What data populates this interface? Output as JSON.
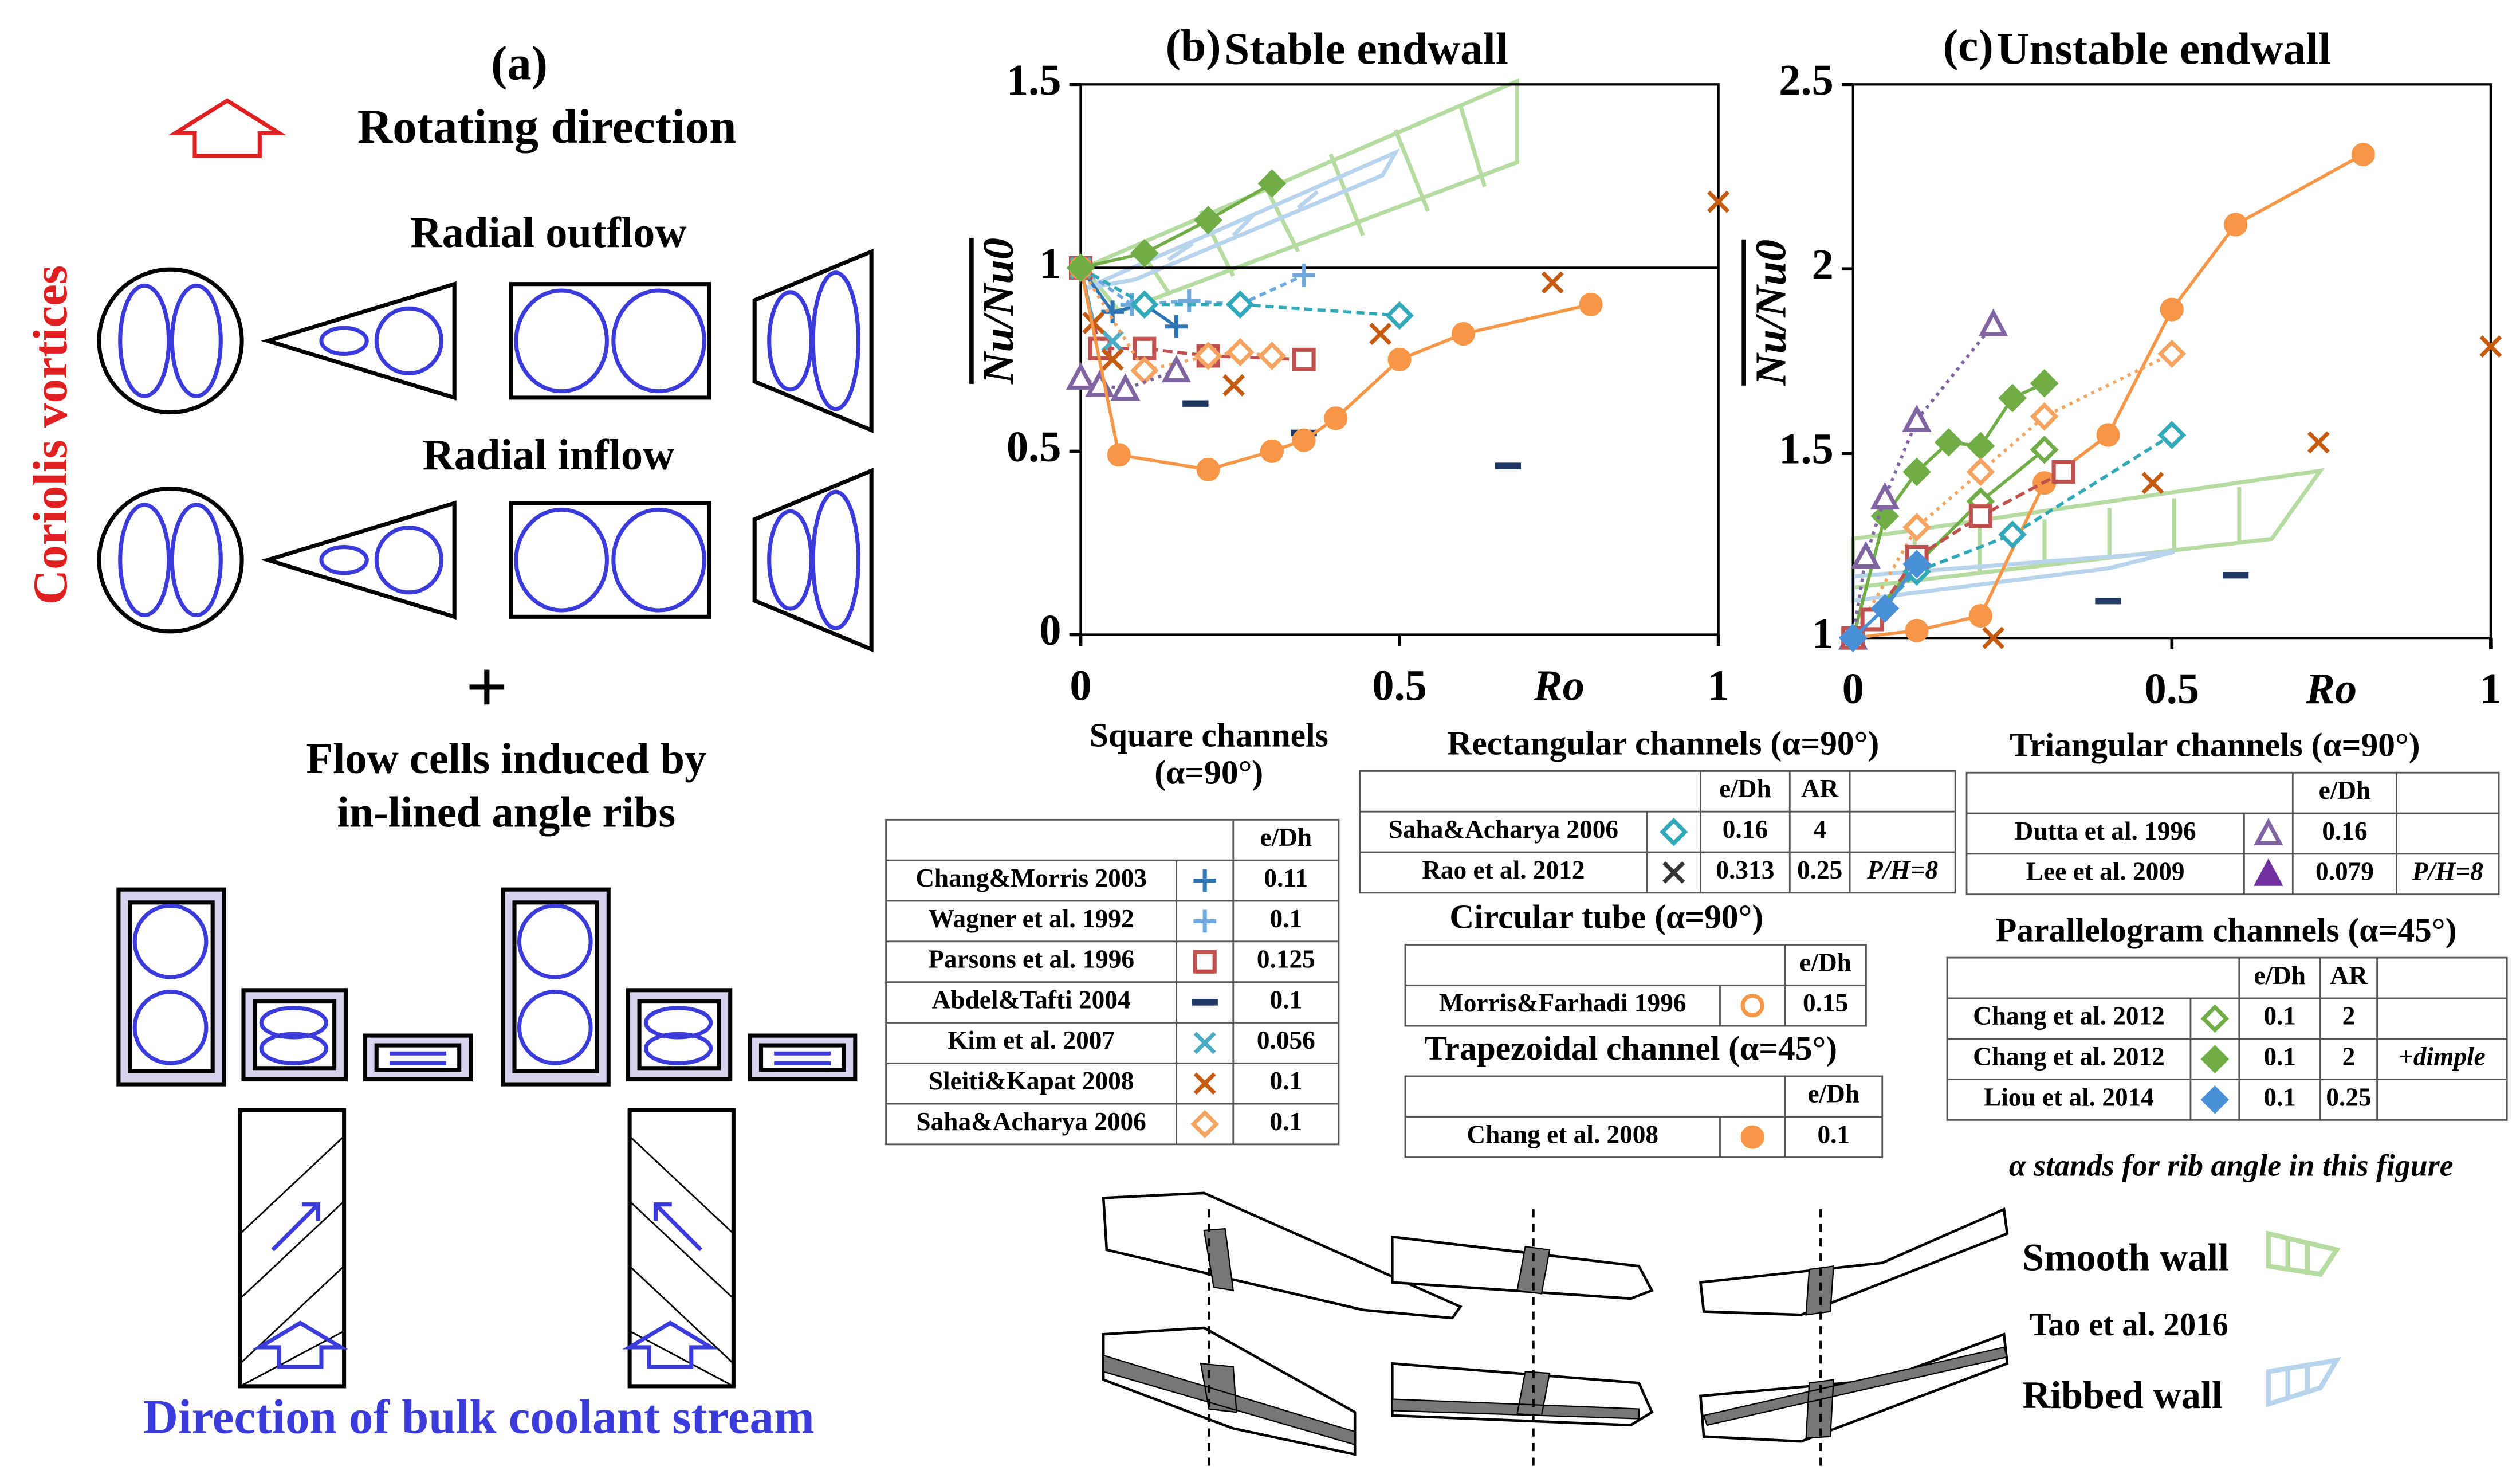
{
  "panel_a": {
    "label": "(a)",
    "rotating": "Rotating direction",
    "outflow": "Radial outflow",
    "inflow": "Radial inflow",
    "coriolis": "Coriolis vortices",
    "plus": "+",
    "cells_1": "Flow cells induced by",
    "cells_2": "in-lined angle ribs",
    "coolant": "Direction of bulk coolant stream"
  },
  "chart_data": [
    {
      "type": "line",
      "panel": "(b)",
      "title": "Stable endwall",
      "xlabel": "Ro",
      "ylabel": "Nu/Nu0",
      "xlim": [
        0,
        1
      ],
      "ylim": [
        0,
        1.5
      ],
      "xticks": [
        0,
        0.5,
        1
      ],
      "yticks": [
        0,
        0.5,
        1,
        1.5
      ],
      "hline": 1,
      "series": [
        {
          "color": "#2e75b6",
          "marker": "plus",
          "x": [
            0,
            0.05,
            0.1,
            0.15
          ],
          "values": [
            1,
            0.88,
            0.9,
            0.84
          ]
        },
        {
          "color": "#6fa8dc",
          "marker": "plus",
          "dash": "4 3",
          "x": [
            0,
            0.08,
            0.17,
            0.25,
            0.35
          ],
          "values": [
            1,
            0.9,
            0.91,
            0.9,
            0.98
          ]
        },
        {
          "color": "#c0504d",
          "marker": "square",
          "dash": "6 3",
          "x": [
            0,
            0.03,
            0.1,
            0.2,
            0.35
          ],
          "values": [
            1,
            0.78,
            0.78,
            0.76,
            0.75
          ]
        },
        {
          "color": "#1f3864",
          "marker": "bar",
          "line": false,
          "x": [
            0.18,
            0.35,
            0.67
          ],
          "values": [
            0.63,
            0.55,
            0.46
          ]
        },
        {
          "color": "#4bacc6",
          "marker": "x",
          "x": [
            0,
            0.02,
            0.05
          ],
          "values": [
            1,
            0.85,
            0.8
          ]
        },
        {
          "color": "#c55a11",
          "marker": "x",
          "line": false,
          "x": [
            0.02,
            0.05,
            0.24,
            0.47,
            0.74,
            1
          ],
          "values": [
            0.85,
            0.75,
            0.68,
            0.82,
            0.96,
            1.18
          ]
        },
        {
          "color": "#f4a460",
          "marker": "diamond",
          "dash": "2 3",
          "x": [
            0,
            0.1,
            0.2,
            0.25,
            0.3
          ],
          "values": [
            1,
            0.72,
            0.76,
            0.77,
            0.76
          ]
        },
        {
          "color": "#31a9b8",
          "marker": "diamond",
          "dash": "5 3",
          "x": [
            0,
            0.1,
            0.25,
            0.5
          ],
          "values": [
            1,
            0.9,
            0.9,
            0.87
          ]
        },
        {
          "color": "#8064a2",
          "marker": "triangle",
          "dash": "2 3",
          "x": [
            0,
            0.03,
            0.07,
            0.15
          ],
          "values": [
            0.7,
            0.68,
            0.67,
            0.72
          ]
        },
        {
          "color": "#f79646",
          "marker": "circle",
          "filled": true,
          "x": [
            0,
            0.06,
            0.2,
            0.3,
            0.35,
            0.4,
            0.5,
            0.6,
            0.8
          ],
          "values": [
            1,
            0.49,
            0.45,
            0.5,
            0.53,
            0.59,
            0.75,
            0.82,
            0.9
          ]
        },
        {
          "color": "#70ad47",
          "marker": "diamond",
          "filled": true,
          "x": [
            0,
            0.1,
            0.2,
            0.3
          ],
          "values": [
            1,
            1.04,
            1.13,
            1.23
          ]
        }
      ]
    },
    {
      "type": "line",
      "panel": "(c)",
      "title": "Unstable endwall",
      "xlabel": "Ro",
      "ylabel": "Nu/Nu0",
      "xlim": [
        0,
        1
      ],
      "ylim": [
        1,
        2.5
      ],
      "xticks": [
        0,
        0.5,
        1
      ],
      "yticks": [
        1,
        1.5,
        2,
        2.5
      ],
      "series": [
        {
          "color": "#f79646",
          "marker": "circle",
          "filled": true,
          "x": [
            0,
            0.1,
            0.2,
            0.3,
            0.4,
            0.5,
            0.6,
            0.8
          ],
          "values": [
            1,
            1.02,
            1.06,
            1.42,
            1.55,
            1.89,
            2.12,
            2.31
          ]
        },
        {
          "color": "#70ad47",
          "marker": "diamond",
          "filled": true,
          "x": [
            0,
            0.05,
            0.1,
            0.15,
            0.2,
            0.25,
            0.3
          ],
          "values": [
            1,
            1.33,
            1.45,
            1.53,
            1.52,
            1.65,
            1.69
          ]
        },
        {
          "color": "#70ad47",
          "marker": "diamond",
          "x": [
            0,
            0.1,
            0.2,
            0.3
          ],
          "values": [
            1,
            1.2,
            1.37,
            1.51
          ]
        },
        {
          "color": "#8064a2",
          "marker": "triangle",
          "dash": "2 3",
          "x": [
            0,
            0.02,
            0.05,
            0.1,
            0.22
          ],
          "values": [
            1,
            1.22,
            1.38,
            1.59,
            1.85
          ]
        },
        {
          "color": "#31a9b8",
          "marker": "diamond",
          "dash": "5 3",
          "x": [
            0,
            0.1,
            0.25,
            0.5
          ],
          "values": [
            1,
            1.18,
            1.28,
            1.55
          ]
        },
        {
          "color": "#f4a460",
          "marker": "diamond",
          "dash": "2 3",
          "x": [
            0,
            0.1,
            0.2,
            0.3,
            0.5
          ],
          "values": [
            1,
            1.3,
            1.45,
            1.6,
            1.77
          ]
        },
        {
          "color": "#c55a11",
          "marker": "x",
          "line": false,
          "x": [
            0.22,
            0.47,
            0.73,
            1
          ],
          "values": [
            1,
            1.42,
            1.53,
            1.79
          ]
        },
        {
          "color": "#c0504d",
          "marker": "square",
          "dash": "6 3",
          "x": [
            0,
            0.03,
            0.1,
            0.2,
            0.33
          ],
          "values": [
            1,
            1.05,
            1.22,
            1.33,
            1.45
          ]
        },
        {
          "color": "#1f3864",
          "marker": "bar",
          "line": false,
          "x": [
            0.4,
            0.6
          ],
          "values": [
            1.1,
            1.17
          ]
        },
        {
          "color": "#4a90d9",
          "marker": "diamond",
          "filled": true,
          "x": [
            0,
            0.05,
            0.1
          ],
          "values": [
            1,
            1.08,
            1.2
          ]
        }
      ]
    }
  ],
  "tables": [
    {
      "title": "Square channels",
      "subtitle": "(α=90°)",
      "header": [
        "e/Dh"
      ],
      "rows": [
        {
          "cells": [
            "Chang&Morris 2003",
            "0.11"
          ],
          "color": "#2e75b6",
          "marker": "plus"
        },
        {
          "cells": [
            "Wagner et al. 1992",
            "0.1"
          ],
          "color": "#6fa8dc",
          "marker": "plus"
        },
        {
          "cells": [
            "Parsons et al. 1996",
            "0.125"
          ],
          "color": "#c0504d",
          "marker": "square"
        },
        {
          "cells": [
            "Abdel&Tafti 2004",
            "0.1"
          ],
          "color": "#1f3864",
          "marker": "bar"
        },
        {
          "cells": [
            "Kim et al. 2007",
            "0.056"
          ],
          "color": "#4bacc6",
          "marker": "x"
        },
        {
          "cells": [
            "Sleiti&Kapat 2008",
            "0.1"
          ],
          "color": "#c55a11",
          "marker": "x"
        },
        {
          "cells": [
            "Saha&Acharya 2006",
            "0.1"
          ],
          "color": "#f4a460",
          "marker": "diamond"
        }
      ]
    },
    {
      "title": "Rectangular channels (α=90°)",
      "header": [
        "e/Dh",
        "AR"
      ],
      "rows": [
        {
          "cells": [
            "Saha&Acharya 2006",
            "0.16",
            "4"
          ],
          "color": "#31a9b8",
          "marker": "diamond"
        },
        {
          "cells": [
            "Rao et al. 2012",
            "0.313",
            "0.25",
            "P/H=8"
          ],
          "color": "#333333",
          "marker": "x"
        }
      ]
    },
    {
      "title": "Triangular channels (α=90°)",
      "header": [
        "e/Dh"
      ],
      "rows": [
        {
          "cells": [
            "Dutta et al. 1996",
            "0.16"
          ],
          "color": "#8064a2",
          "marker": "triangle"
        },
        {
          "cells": [
            "Lee et al. 2009",
            "0.079",
            "P/H=8"
          ],
          "color": "#7030a0",
          "marker": "triangle",
          "filled": true
        }
      ]
    },
    {
      "title": "Circular tube (α=90°)",
      "header": [
        "e/Dh"
      ],
      "rows": [
        {
          "cells": [
            "Morris&Farhadi 1996",
            "0.15"
          ],
          "color": "#f79646",
          "marker": "circle"
        }
      ]
    },
    {
      "title": "Trapezoidal channel (α=45°)",
      "header": [
        "e/Dh"
      ],
      "rows": [
        {
          "cells": [
            "Chang et al. 2008",
            "0.1"
          ],
          "color": "#f79646",
          "marker": "circle",
          "filled": true
        }
      ]
    },
    {
      "title": "Parallelogram channels (α=45°)",
      "header": [
        "e/Dh",
        "AR"
      ],
      "rows": [
        {
          "cells": [
            "Chang et al. 2012",
            "0.1",
            "2"
          ],
          "color": "#70ad47",
          "marker": "diamond"
        },
        {
          "cells": [
            "Chang et al. 2012",
            "0.1",
            "2",
            "+dimple"
          ],
          "color": "#70ad47",
          "marker": "diamond",
          "filled": true
        },
        {
          "cells": [
            "Liou et al. 2014",
            "0.1",
            "0.25"
          ],
          "color": "#4a90d9",
          "marker": "diamond",
          "filled": true
        }
      ]
    }
  ],
  "note": "α stands for rib angle in this figure",
  "bands": {
    "smooth": "Smooth wall",
    "source": "Tao et al. 2016",
    "ribbed": "Ribbed wall"
  }
}
